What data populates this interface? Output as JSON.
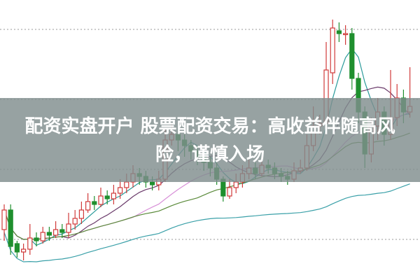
{
  "headline": "配资实盘开户 股票配资交易：高收益伴随高风险，谨慎入场",
  "chart_data": {
    "type": "candlestick",
    "grid": true,
    "ylim": [
      0,
      100
    ],
    "colors": {
      "up": "#d03a3a",
      "down": "#1f8f2e",
      "banner": "#808e8e"
    },
    "moving_average_colors": [
      "#2a9a9a",
      "#6a3a6a",
      "#d890d8",
      "#5a8a3a",
      "#3aa0a8"
    ],
    "candles_ohlc": [
      [
        18,
        27,
        14,
        25
      ],
      [
        25,
        27,
        9,
        12
      ],
      [
        13,
        14,
        8,
        10
      ],
      [
        10,
        13,
        7,
        11
      ],
      [
        11,
        20,
        9,
        15
      ],
      [
        15,
        17,
        12,
        14
      ],
      [
        14,
        19,
        13,
        17
      ],
      [
        17,
        19,
        14,
        16
      ],
      [
        16,
        21,
        15,
        18
      ],
      [
        18,
        20,
        15,
        17
      ],
      [
        17,
        24,
        15,
        20
      ],
      [
        20,
        25,
        18,
        22
      ],
      [
        22,
        28,
        20,
        25
      ],
      [
        25,
        31,
        24,
        28
      ],
      [
        28,
        30,
        25,
        27
      ],
      [
        27,
        33,
        26,
        30
      ],
      [
        30,
        32,
        27,
        29
      ],
      [
        29,
        34,
        27,
        31
      ],
      [
        31,
        36,
        29,
        33
      ],
      [
        33,
        38,
        31,
        35
      ],
      [
        35,
        41,
        33,
        38
      ],
      [
        38,
        40,
        34,
        37
      ],
      [
        37,
        39,
        33,
        35
      ],
      [
        35,
        37,
        32,
        34
      ],
      [
        34,
        39,
        32,
        36
      ],
      [
        36,
        54,
        35,
        50
      ],
      [
        50,
        56,
        48,
        52
      ],
      [
        52,
        54,
        46,
        50
      ],
      [
        50,
        52,
        44,
        48
      ],
      [
        48,
        50,
        43,
        46
      ],
      [
        46,
        48,
        41,
        44
      ],
      [
        44,
        46,
        39,
        42
      ],
      [
        42,
        44,
        37,
        40
      ],
      [
        40,
        42,
        34,
        36
      ],
      [
        36,
        37,
        28,
        30
      ],
      [
        30,
        36,
        29,
        33
      ],
      [
        33,
        38,
        31,
        35
      ],
      [
        35,
        41,
        33,
        38
      ],
      [
        38,
        43,
        36,
        40
      ],
      [
        40,
        42,
        36,
        38
      ],
      [
        38,
        44,
        37,
        41
      ],
      [
        41,
        43,
        38,
        40
      ],
      [
        40,
        42,
        36,
        38
      ],
      [
        38,
        40,
        35,
        37
      ],
      [
        37,
        39,
        34,
        36
      ],
      [
        36,
        42,
        35,
        39
      ],
      [
        39,
        43,
        38,
        40
      ],
      [
        40,
        52,
        39,
        48
      ],
      [
        48,
        62,
        46,
        55
      ],
      [
        55,
        59,
        52,
        56
      ],
      [
        56,
        85,
        52,
        75
      ],
      [
        74,
        93,
        70,
        90
      ],
      [
        89,
        92,
        85,
        88
      ],
      [
        88,
        91,
        84,
        88
      ],
      [
        88,
        90,
        68,
        72
      ],
      [
        72,
        74,
        56,
        60
      ],
      [
        60,
        62,
        40,
        45
      ],
      [
        45,
        58,
        42,
        55
      ],
      [
        55,
        65,
        50,
        60
      ],
      [
        60,
        62,
        48,
        52
      ],
      [
        52,
        75,
        50,
        58
      ],
      [
        58,
        70,
        55,
        65
      ],
      [
        65,
        68,
        56,
        60
      ],
      [
        60,
        76,
        58,
        62
      ]
    ]
  }
}
